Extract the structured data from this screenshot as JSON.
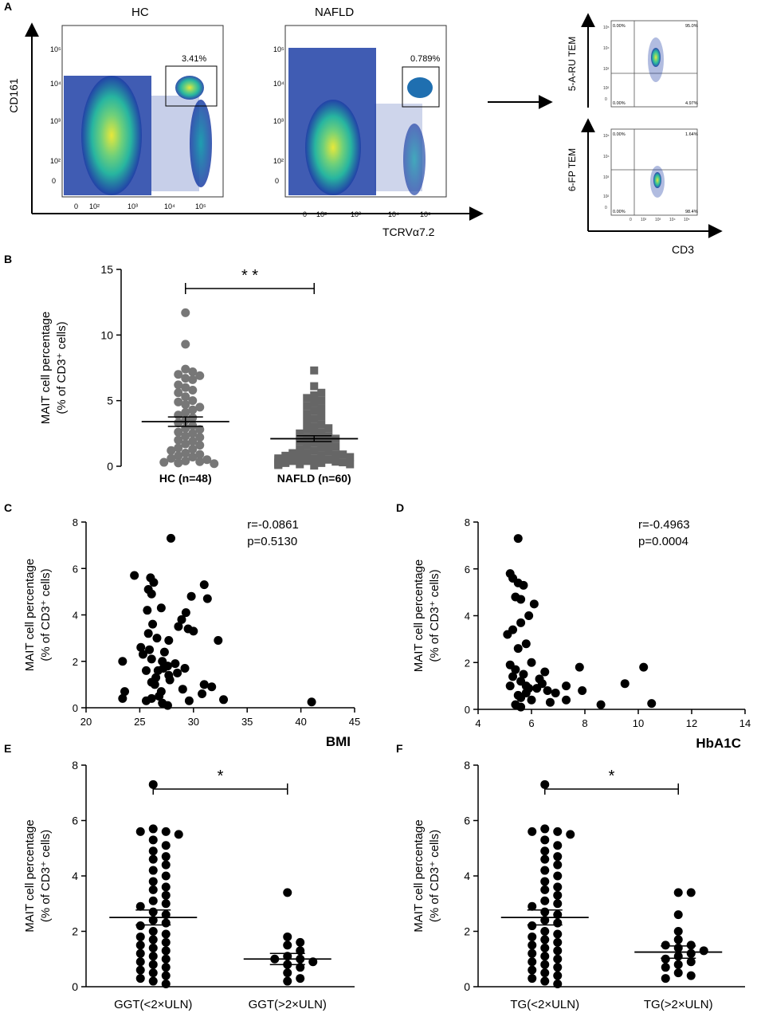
{
  "panelA": {
    "letter": "A",
    "hc_label": "HC",
    "nafld_label": "NAFLD",
    "hc_gate_pct": "3.41%",
    "nafld_gate_pct": "0.789%",
    "y_axis_label": "CD161",
    "x_axis_label": "TCRVα7.2",
    "y_tick_labels": [
      "10⁵",
      "10⁴",
      "10³",
      "10²",
      "0"
    ],
    "x_tick_labels": [
      "0",
      "10²",
      "10³",
      "10⁴",
      "10⁵"
    ],
    "tetramer_top_label": "5-A-RU TEM",
    "tetramer_bottom_label": "6-FP TEM",
    "tetramer_x_label": "CD3",
    "tetramer_top_quadrants": [
      "0.00%",
      "95.0%",
      "0.00%",
      "4.97%"
    ],
    "tetramer_bottom_quadrants": [
      "0.00%",
      "1.64%",
      "0.00%",
      "98.4%"
    ],
    "mini_y_ticks": [
      "10⁵",
      "10⁴",
      "10³",
      "10²",
      "0"
    ],
    "mini_x_ticks": [
      "0",
      "10²",
      "10³",
      "10⁴",
      "10⁵"
    ],
    "colors": {
      "density_low": "#1f3fa6",
      "density_mid": "#27b5a0",
      "density_high": "#e8e83a"
    }
  },
  "chart_data": [
    {
      "panel": "B",
      "type": "scatter",
      "title": "",
      "ylabel_line1": "MAIT cell percentage",
      "ylabel_line2": "(% of CD3⁺ cells)",
      "categories": [
        "HC (n=48)",
        "NAFLD (n=60)"
      ],
      "ylim": [
        0,
        15
      ],
      "yticks": [
        0,
        5,
        10,
        15
      ],
      "significance": "* *",
      "colors": {
        "HC": "#777777",
        "NAFLD": "#666666"
      },
      "series": [
        {
          "name": "HC (n=48)",
          "marker": "circle",
          "mean": 3.4,
          "sem": 0.36,
          "values": [
            11.7,
            9.3,
            7.4,
            7.2,
            7.0,
            6.9,
            6.7,
            6.6,
            6.2,
            6.0,
            5.8,
            5.6,
            5.3,
            5.0,
            4.9,
            4.7,
            4.5,
            4.3,
            4.1,
            3.9,
            3.7,
            3.5,
            3.3,
            3.1,
            2.9,
            2.8,
            2.6,
            2.5,
            2.3,
            2.2,
            2.0,
            1.9,
            1.7,
            1.6,
            1.4,
            1.3,
            1.2,
            1.0,
            0.9,
            0.8,
            0.7,
            0.6,
            0.5,
            0.4,
            0.35,
            0.3,
            0.25,
            0.2
          ]
        },
        {
          "name": "NAFLD (n=60)",
          "marker": "square",
          "mean": 2.1,
          "sem": 0.22,
          "values": [
            7.3,
            6.1,
            5.6,
            5.4,
            5.2,
            5.0,
            4.8,
            4.6,
            4.4,
            4.2,
            4.0,
            3.8,
            3.6,
            3.4,
            3.2,
            3.0,
            2.9,
            2.8,
            2.6,
            2.5,
            2.4,
            2.3,
            2.2,
            2.1,
            2.0,
            1.9,
            1.8,
            1.7,
            1.6,
            1.5,
            1.4,
            1.3,
            1.2,
            1.1,
            1.0,
            1.0,
            0.9,
            0.9,
            0.8,
            0.8,
            0.7,
            0.7,
            0.6,
            0.6,
            0.5,
            0.5,
            0.4,
            0.4,
            0.35,
            0.3,
            0.3,
            0.25,
            0.25,
            0.2,
            0.2,
            0.15,
            0.15,
            0.1,
            0.1,
            0.05
          ]
        }
      ]
    },
    {
      "panel": "C",
      "type": "scatter",
      "xlabel": "BMI",
      "ylabel_line1": "MAIT cell percentage",
      "ylabel_line2": "(% of CD3⁺ cells)",
      "xlim": [
        20,
        45
      ],
      "ylim": [
        0,
        8
      ],
      "xticks": [
        20,
        25,
        30,
        35,
        40,
        45
      ],
      "yticks": [
        0,
        2,
        4,
        6,
        8
      ],
      "r_text": "r=-0.0861",
      "p_text": "p=0.5130",
      "x": [
        27.9,
        24.5,
        26.0,
        26.3,
        25.8,
        26.1,
        31.0,
        29.8,
        31.3,
        27.0,
        25.7,
        29.3,
        28.9,
        26.2,
        28.6,
        29.5,
        30.0,
        25.8,
        26.6,
        27.7,
        32.3,
        25.1,
        25.9,
        27.3,
        23.4,
        25.3,
        26.1,
        27.1,
        28.3,
        27.6,
        29.2,
        27.2,
        25.6,
        26.7,
        28.5,
        27.7,
        26.5,
        31.0,
        31.7,
        27.8,
        26.1,
        26.4,
        23.6,
        29.0,
        30.8,
        23.4,
        26.8,
        26.1,
        25.6,
        27.1,
        27.6,
        29.6,
        32.8,
        27.0,
        31.0,
        41.0
      ],
      "y": [
        7.3,
        5.7,
        5.6,
        5.4,
        5.1,
        4.9,
        5.3,
        4.8,
        4.7,
        4.3,
        4.2,
        4.1,
        3.8,
        3.6,
        3.5,
        3.4,
        3.3,
        3.2,
        3.0,
        2.9,
        2.9,
        2.6,
        2.5,
        2.4,
        2.0,
        2.3,
        2.1,
        2.0,
        1.9,
        1.8,
        1.7,
        1.7,
        1.6,
        1.6,
        1.5,
        1.4,
        1.3,
        1.0,
        0.9,
        1.2,
        1.1,
        1.0,
        0.7,
        0.8,
        0.6,
        0.4,
        0.5,
        0.4,
        0.3,
        0.2,
        0.1,
        0.3,
        0.35,
        0.7,
        1.0,
        0.25
      ]
    },
    {
      "panel": "D",
      "type": "scatter",
      "xlabel": "HbA1C",
      "ylabel_line1": "MAIT cell percentage",
      "ylabel_line2": "(% of CD3⁺ cells)",
      "xlim": [
        4,
        14
      ],
      "ylim": [
        0,
        8
      ],
      "xticks": [
        4,
        6,
        8,
        10,
        12,
        14
      ],
      "yticks": [
        0,
        2,
        4,
        6,
        8
      ],
      "r_text": "r=-0.4963",
      "p_text": "p=0.0004",
      "x": [
        5.5,
        5.2,
        5.3,
        5.5,
        5.7,
        5.4,
        5.6,
        6.1,
        5.9,
        5.3,
        5.6,
        5.1,
        5.5,
        5.8,
        6.0,
        5.2,
        5.4,
        5.7,
        5.3,
        5.6,
        5.8,
        6.3,
        6.5,
        7.3,
        7.8,
        6.2,
        6.6,
        6.9,
        6.4,
        7.9,
        9.5,
        10.2,
        5.2,
        5.5,
        5.6,
        6.0,
        5.9,
        6.7,
        7.3,
        5.4,
        5.6,
        8.6,
        10.5,
        5.8
      ],
      "y": [
        7.3,
        5.8,
        5.6,
        5.4,
        5.3,
        4.8,
        4.7,
        4.5,
        4.0,
        3.4,
        3.7,
        3.2,
        2.6,
        2.8,
        2.0,
        1.9,
        1.7,
        1.5,
        1.4,
        1.2,
        1.0,
        1.3,
        1.6,
        1.0,
        1.8,
        0.9,
        0.8,
        0.7,
        1.1,
        0.8,
        1.1,
        1.8,
        1.0,
        0.6,
        0.5,
        0.4,
        0.9,
        0.3,
        0.4,
        0.2,
        0.1,
        0.2,
        0.25,
        0.7
      ]
    },
    {
      "panel": "E",
      "type": "scatter",
      "ylabel_line1": "MAIT cell percentage",
      "ylabel_line2": "(% of CD3⁺ cells)",
      "categories": [
        "GGT(<2×ULN)",
        "GGT(>2×ULN)"
      ],
      "ylim": [
        0,
        8
      ],
      "yticks": [
        0,
        2,
        4,
        6,
        8
      ],
      "significance": "*",
      "series": [
        {
          "name": "GGT(<2×ULN)",
          "mean": 2.5,
          "sem": 0.27,
          "values": [
            7.3,
            5.7,
            5.6,
            5.6,
            5.5,
            5.3,
            5.1,
            4.9,
            4.7,
            4.6,
            4.4,
            4.2,
            4.0,
            3.8,
            3.6,
            3.5,
            3.3,
            3.1,
            3.0,
            2.9,
            2.7,
            2.6,
            2.4,
            2.3,
            2.2,
            2.0,
            1.9,
            1.8,
            1.7,
            1.6,
            1.5,
            1.4,
            1.3,
            1.2,
            1.1,
            1.0,
            0.9,
            0.8,
            0.7,
            0.6,
            0.5,
            0.4,
            0.3,
            0.2,
            0.1
          ]
        },
        {
          "name": "GGT(>2×ULN)",
          "mean": 1.0,
          "sem": 0.2,
          "values": [
            3.4,
            1.8,
            1.6,
            1.5,
            1.3,
            1.1,
            1.0,
            1.0,
            0.9,
            0.8,
            0.7,
            0.5,
            0.3,
            0.2
          ]
        }
      ]
    },
    {
      "panel": "F",
      "type": "scatter",
      "ylabel_line1": "MAIT cell percentage",
      "ylabel_line2": "(% of CD3⁺ cells)",
      "categories": [
        "TG(<2×ULN)",
        "TG(>2×ULN)"
      ],
      "ylim": [
        0,
        8
      ],
      "yticks": [
        0,
        2,
        4,
        6,
        8
      ],
      "significance": "*",
      "series": [
        {
          "name": "TG(<2×ULN)",
          "mean": 2.5,
          "sem": 0.27,
          "values": [
            7.3,
            5.7,
            5.6,
            5.6,
            5.5,
            5.3,
            5.1,
            4.9,
            4.7,
            4.6,
            4.4,
            4.2,
            4.0,
            3.8,
            3.6,
            3.5,
            3.3,
            3.1,
            3.0,
            2.9,
            2.7,
            2.6,
            2.4,
            2.3,
            2.2,
            2.0,
            1.9,
            1.8,
            1.7,
            1.6,
            1.5,
            1.4,
            1.3,
            1.2,
            1.1,
            1.0,
            0.9,
            0.8,
            0.7,
            0.6,
            0.5,
            0.4,
            0.3,
            0.2,
            0.1
          ]
        },
        {
          "name": "TG(>2×ULN)",
          "mean": 1.25,
          "sem": 0.22,
          "values": [
            3.4,
            3.4,
            2.6,
            2.0,
            1.7,
            1.5,
            1.5,
            1.4,
            1.3,
            1.2,
            1.1,
            1.0,
            0.9,
            0.8,
            0.7,
            0.5,
            0.4,
            0.3
          ]
        }
      ]
    }
  ]
}
